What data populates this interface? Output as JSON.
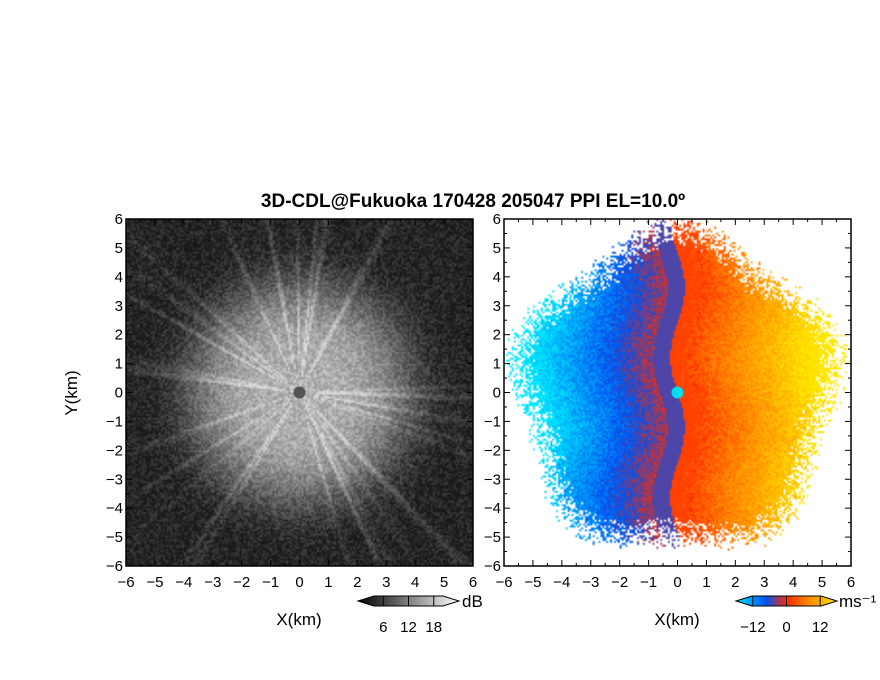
{
  "chart_data": {
    "title": "3D-CDL@Fukuoka 170428 205047 PPI EL=10.0º",
    "panels": [
      {
        "type": "heatmap",
        "name": "reflectivity",
        "xlabel": "X(km)",
        "ylabel": "Y(km)",
        "xlim": [
          -6,
          6
        ],
        "ylim": [
          -6,
          6
        ],
        "x_ticks": [
          "−6",
          "−5",
          "−4",
          "−3",
          "−2",
          "−1",
          "0",
          "1",
          "2",
          "3",
          "4",
          "5",
          "6"
        ],
        "y_ticks": [
          "6",
          "5",
          "4",
          "3",
          "2",
          "1",
          "0",
          "−1",
          "−2",
          "−3",
          "−4",
          "−5",
          "−6"
        ],
        "radar_site": [
          0,
          0
        ],
        "colorbar": {
          "unit": "dB",
          "ticks": [
            "6",
            "12",
            "18"
          ],
          "range": [
            0,
            24
          ],
          "colormap": "grayscale"
        }
      },
      {
        "type": "heatmap",
        "name": "doppler-velocity",
        "xlabel": "X(km)",
        "xlim": [
          -6,
          6
        ],
        "ylim": [
          -6,
          6
        ],
        "x_ticks": [
          "−6",
          "−5",
          "−4",
          "−3",
          "−2",
          "−1",
          "0",
          "1",
          "2",
          "3",
          "4",
          "5",
          "6"
        ],
        "y_ticks": [
          "6",
          "5",
          "4",
          "3",
          "2",
          "1",
          "0",
          "−1",
          "−2",
          "−3",
          "−4",
          "−5",
          "−6"
        ],
        "radar_site": [
          0,
          0
        ],
        "data_extent_km": 5.2,
        "colorbar": {
          "unit": "ms⁻¹",
          "ticks": [
            "−12",
            "0",
            "12"
          ],
          "range": [
            -18,
            18
          ],
          "colormap": "cyan-blue-red-orange-yellow"
        }
      }
    ]
  },
  "colors": {
    "velocity_stops": [
      "#00e6ff",
      "#0050f0",
      "#ff2a00",
      "#ff8000",
      "#ffe600"
    ],
    "site_left": "#555555",
    "site_right": "#00ddee"
  }
}
